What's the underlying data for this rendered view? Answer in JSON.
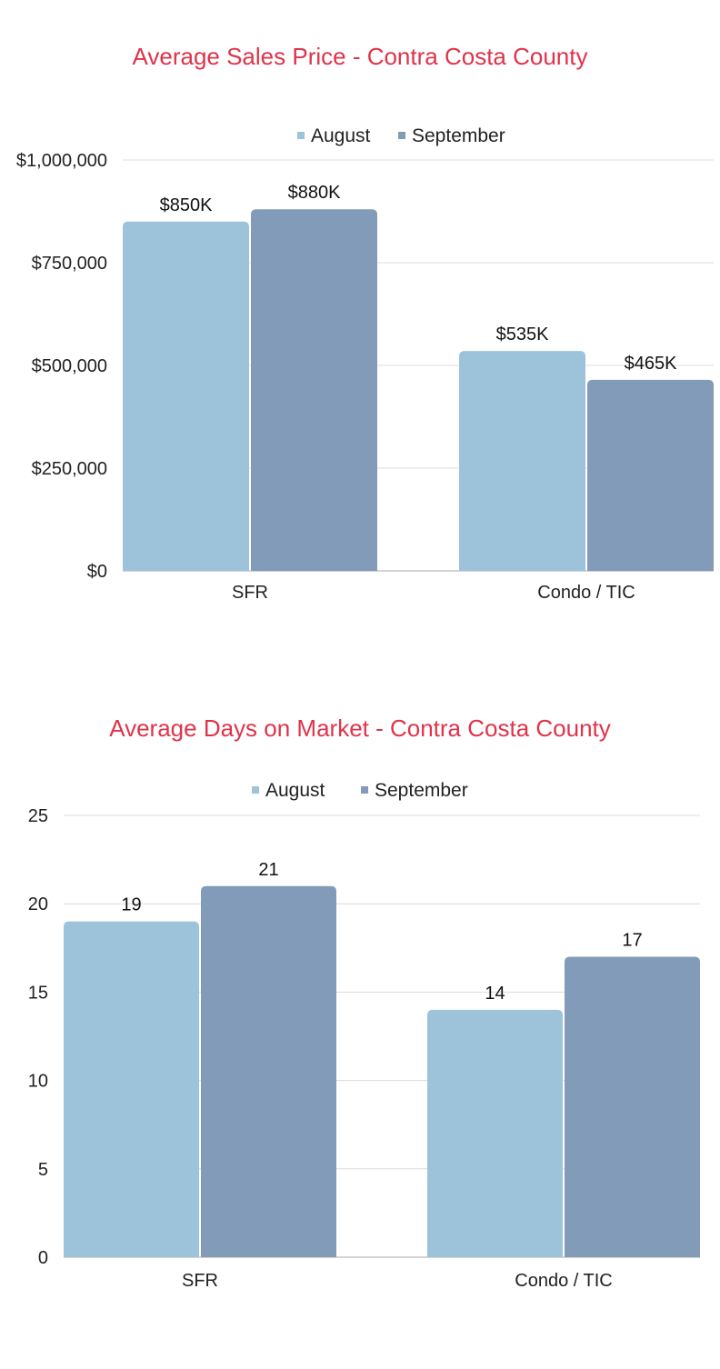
{
  "colors": {
    "title": "#e0334a",
    "august": "#9dc3da",
    "september": "#819bb8"
  },
  "chart_data": [
    {
      "type": "bar",
      "title": "Average Sales Price - Contra Costa County",
      "categories": [
        "SFR",
        "Condo / TIC"
      ],
      "series": [
        {
          "name": "August",
          "values": [
            850000,
            535000
          ],
          "labels": [
            "$850K",
            "$535K"
          ]
        },
        {
          "name": "September",
          "values": [
            880000,
            465000
          ],
          "labels": [
            "$880K",
            "$465K"
          ]
        }
      ],
      "ylim": [
        0,
        1000000
      ],
      "yticks": [
        0,
        250000,
        500000,
        750000,
        1000000
      ],
      "ytick_labels": [
        "$0",
        "$250,000",
        "$500,000",
        "$750,000",
        "$1,000,000"
      ],
      "legend": "top",
      "grid": true
    },
    {
      "type": "bar",
      "title": "Average Days on Market - Contra Costa County",
      "categories": [
        "SFR",
        "Condo / TIC"
      ],
      "series": [
        {
          "name": "August",
          "values": [
            19,
            14
          ],
          "labels": [
            "19",
            "14"
          ]
        },
        {
          "name": "September",
          "values": [
            21,
            17
          ],
          "labels": [
            "21",
            "17"
          ]
        }
      ],
      "ylim": [
        0,
        25
      ],
      "yticks": [
        0,
        5,
        10,
        15,
        20,
        25
      ],
      "ytick_labels": [
        "0",
        "5",
        "10",
        "15",
        "20",
        "25"
      ],
      "legend": "top",
      "grid": true
    }
  ]
}
